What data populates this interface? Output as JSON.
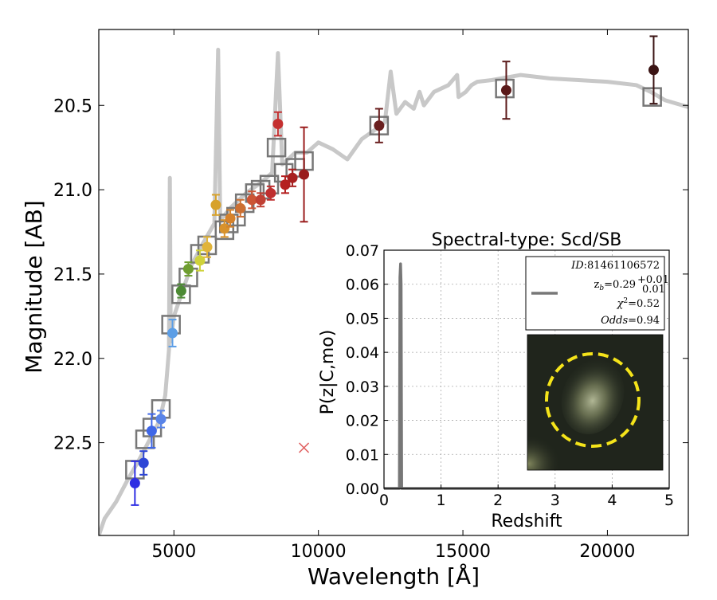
{
  "chart_data": [
    {
      "type": "scatter",
      "xlabel": "Wavelength [Å]",
      "ylabel": "Magnitude [AB]",
      "xlim": [
        2400,
        22800
      ],
      "ylim": [
        23.05,
        20.05
      ],
      "y_inverted": true,
      "xticks": [
        5000,
        10000,
        15000,
        20000
      ],
      "yticks": [
        20.5,
        21.0,
        21.5,
        22.0,
        22.5
      ],
      "grid": false,
      "template_spectrum": {
        "color": "#c8c8c8",
        "points": [
          [
            2400,
            23.05
          ],
          [
            2600,
            22.95
          ],
          [
            3000,
            22.85
          ],
          [
            3400,
            22.72
          ],
          [
            3800,
            22.6
          ],
          [
            4200,
            22.47
          ],
          [
            4500,
            22.37
          ],
          [
            4700,
            22.22
          ],
          [
            4830,
            21.95
          ],
          [
            4860,
            20.93
          ],
          [
            4890,
            21.9
          ],
          [
            5000,
            21.75
          ],
          [
            5300,
            21.6
          ],
          [
            5600,
            21.45
          ],
          [
            6000,
            21.32
          ],
          [
            6400,
            21.2
          ],
          [
            6530,
            20.17
          ],
          [
            6600,
            21.18
          ],
          [
            7000,
            21.1
          ],
          [
            7500,
            21.02
          ],
          [
            8000,
            20.96
          ],
          [
            8400,
            20.9
          ],
          [
            8600,
            20.19
          ],
          [
            8750,
            20.85
          ],
          [
            9200,
            20.78
          ],
          [
            9600,
            20.78
          ],
          [
            10000,
            20.72
          ],
          [
            10500,
            20.76
          ],
          [
            11000,
            20.82
          ],
          [
            11500,
            20.7
          ],
          [
            12000,
            20.64
          ],
          [
            12300,
            20.6
          ],
          [
            12500,
            20.3
          ],
          [
            12700,
            20.55
          ],
          [
            13000,
            20.48
          ],
          [
            13300,
            20.52
          ],
          [
            13500,
            20.42
          ],
          [
            13650,
            20.5
          ],
          [
            14000,
            20.42
          ],
          [
            14500,
            20.38
          ],
          [
            14800,
            20.32
          ],
          [
            14850,
            20.45
          ],
          [
            15100,
            20.42
          ],
          [
            15300,
            20.38
          ],
          [
            15500,
            20.36
          ],
          [
            16000,
            20.35
          ],
          [
            17000,
            20.32
          ],
          [
            18000,
            20.34
          ],
          [
            19000,
            20.35
          ],
          [
            20000,
            20.36
          ],
          [
            21000,
            20.38
          ],
          [
            21500,
            20.42
          ],
          [
            22000,
            20.47
          ],
          [
            22800,
            20.51
          ]
        ]
      },
      "model_magnitudes": {
        "marker": "open-square",
        "color": "#777777",
        "points": [
          [
            3650,
            22.66
          ],
          [
            4000,
            22.48
          ],
          [
            4250,
            22.41
          ],
          [
            4550,
            22.3
          ],
          [
            4900,
            21.8
          ],
          [
            5250,
            21.62
          ],
          [
            5500,
            21.52
          ],
          [
            5900,
            21.38
          ],
          [
            6150,
            21.33
          ],
          [
            6750,
            21.24
          ],
          [
            6900,
            21.2
          ],
          [
            7150,
            21.16
          ],
          [
            7450,
            21.08
          ],
          [
            7800,
            21.02
          ],
          [
            8000,
            21.0
          ],
          [
            8300,
            20.97
          ],
          [
            8550,
            20.75
          ],
          [
            8800,
            20.9
          ],
          [
            9200,
            20.87
          ],
          [
            9500,
            20.83
          ],
          [
            12100,
            20.62
          ],
          [
            16450,
            20.4
          ],
          [
            21550,
            20.45
          ]
        ]
      },
      "observed_magnitudes": [
        {
          "x": 3650,
          "y": 22.74,
          "err": 0.13,
          "color": "#2f2fe3"
        },
        {
          "x": 3950,
          "y": 22.62,
          "err": 0.07,
          "color": "#2e46d6"
        },
        {
          "x": 4230,
          "y": 22.43,
          "err": 0.1,
          "color": "#3f67e8"
        },
        {
          "x": 4550,
          "y": 22.36,
          "err": 0.05,
          "color": "#5984e8"
        },
        {
          "x": 4950,
          "y": 21.85,
          "err": 0.08,
          "color": "#5c9ee6"
        },
        {
          "x": 5250,
          "y": 21.6,
          "err": 0.04,
          "color": "#4c8a34"
        },
        {
          "x": 5500,
          "y": 21.47,
          "err": 0.04,
          "color": "#6f9e30"
        },
        {
          "x": 5900,
          "y": 21.42,
          "err": 0.06,
          "color": "#cfd23b"
        },
        {
          "x": 6150,
          "y": 21.34,
          "err": 0.06,
          "color": "#e1b43a"
        },
        {
          "x": 6450,
          "y": 21.09,
          "err": 0.06,
          "color": "#d7a22c"
        },
        {
          "x": 6750,
          "y": 21.23,
          "err": 0.05,
          "color": "#d8922c"
        },
        {
          "x": 6950,
          "y": 21.17,
          "err": 0.05,
          "color": "#d6822b"
        },
        {
          "x": 7300,
          "y": 21.11,
          "err": 0.05,
          "color": "#cd7032"
        },
        {
          "x": 7700,
          "y": 21.06,
          "err": 0.05,
          "color": "#cc5535"
        },
        {
          "x": 8000,
          "y": 21.06,
          "err": 0.04,
          "color": "#c04034"
        },
        {
          "x": 8350,
          "y": 21.02,
          "err": 0.04,
          "color": "#bf2f2f"
        },
        {
          "x": 8600,
          "y": 20.61,
          "err": 0.07,
          "color": "#c43030"
        },
        {
          "x": 8850,
          "y": 20.97,
          "err": 0.05,
          "color": "#b52020"
        },
        {
          "x": 9100,
          "y": 20.93,
          "err": 0.05,
          "color": "#a82020"
        },
        {
          "x": 9500,
          "y": 20.91,
          "err": 0.28,
          "color": "#9a1d1d"
        },
        {
          "x": 12100,
          "y": 20.62,
          "err": 0.1,
          "color": "#6a1f1f"
        },
        {
          "x": 16500,
          "y": 20.41,
          "err": 0.17,
          "color": "#5b1a1a"
        },
        {
          "x": 21600,
          "y": 20.29,
          "err": 0.2,
          "color": "#3b1414"
        }
      ],
      "upper_limit_marker": {
        "x": 9500,
        "y": 22.53,
        "marker": "x",
        "color": "#e06060"
      }
    },
    {
      "type": "line",
      "title": "Spectral-type: Scd/SB",
      "xlabel": "Redshift",
      "ylabel": "P(z|C,mo)",
      "xlim": [
        0,
        5
      ],
      "ylim": [
        0,
        0.07
      ],
      "xticks": [
        0,
        1,
        2,
        3,
        4,
        5
      ],
      "yticks": [
        0.0,
        0.01,
        0.02,
        0.03,
        0.04,
        0.05,
        0.06,
        0.07
      ],
      "grid": true,
      "series": [
        {
          "color": "#777777",
          "x": [
            0.0,
            0.27,
            0.28,
            0.29,
            0.3,
            0.31,
            5.0
          ],
          "y": [
            0.0,
            0.0,
            0.062,
            0.066,
            0.06,
            0.0,
            0.0
          ]
        }
      ],
      "legend": {
        "position": "top-right",
        "id_label": "ID",
        "id_value": "81461106572",
        "zb_label": "z",
        "zb_sub": "b",
        "zb_value": "=0.29",
        "zb_plus": "+0.01",
        "zb_minus": "0.01",
        "chi_label": "χ",
        "chi_sup": "2",
        "chi_value": "=0.52",
        "odds_label": "Odds",
        "odds_value": "=0.94"
      },
      "thumbnail": {
        "aperture_color": "#f5e41a",
        "background_color": "#20251c"
      }
    }
  ]
}
